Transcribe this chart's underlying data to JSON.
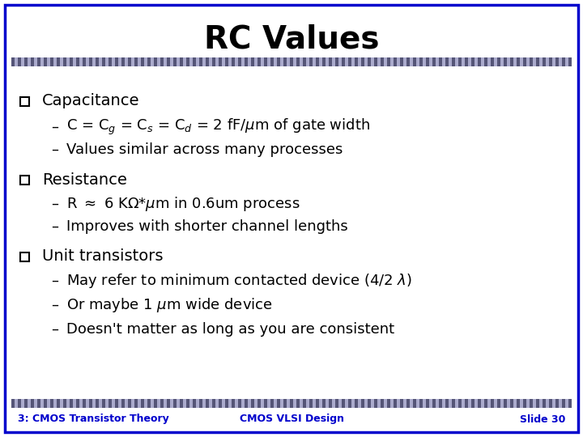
{
  "title": "RC Values",
  "title_fontsize": 28,
  "background_color": "#ffffff",
  "border_color": "#0000cc",
  "border_linewidth": 2.5,
  "text_color": "#000000",
  "footer_left": "3: CMOS Transistor Theory",
  "footer_center": "CMOS VLSI Design",
  "footer_right": "Slide 30",
  "footer_fontsize": 9,
  "footer_color": "#0000cc",
  "sep_color_dark": "#555577",
  "sep_color_light": "#aaaacc",
  "main_fontsize": 14,
  "sub_fontsize": 13,
  "positions": [
    [
      0,
      "Capacitance",
      415
    ],
    [
      1,
      "C = C$_g$ = C$_s$ = C$_d$ = 2 fF/$\\mu$m of gate width",
      383
    ],
    [
      1,
      "Values similar across many processes",
      355
    ],
    [
      0,
      "Resistance",
      318
    ],
    [
      1,
      "R $\\approx$ 6 K$\\Omega$*$\\mu$m in 0.6um process",
      288
    ],
    [
      1,
      "Improves with shorter channel lengths",
      260
    ],
    [
      0,
      "Unit transistors",
      223
    ],
    [
      1,
      "May refer to minimum contacted device (4/2 $\\lambda$)",
      193
    ],
    [
      1,
      "Or maybe 1 $\\mu$m wide device",
      163
    ],
    [
      1,
      "Doesn't matter as long as you are consistent",
      133
    ]
  ]
}
